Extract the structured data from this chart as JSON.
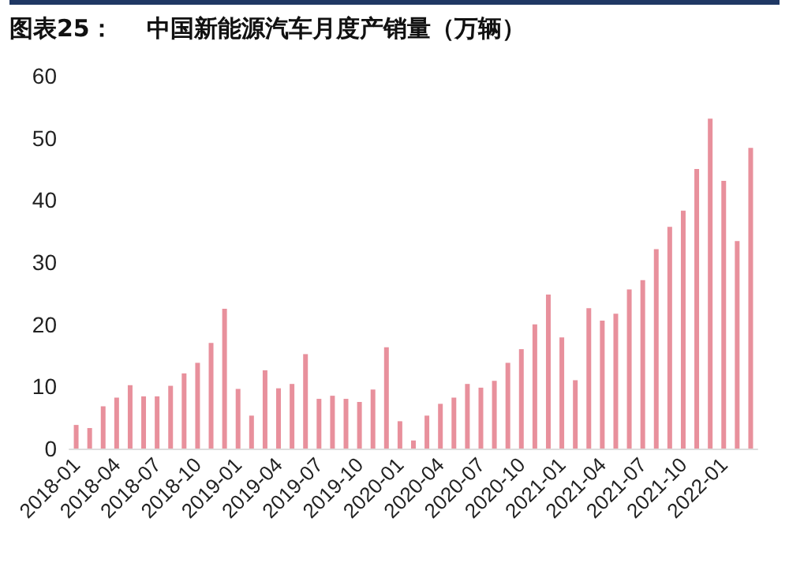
{
  "chart_data": {
    "type": "bar",
    "title": "图表25：    中国新能源汽车月度产销量（万辆）",
    "categories": [
      "2018-01",
      null,
      null,
      "2018-04",
      null,
      null,
      "2018-07",
      null,
      null,
      "2018-10",
      null,
      null,
      "2019-01",
      null,
      null,
      "2019-04",
      null,
      null,
      "2019-07",
      null,
      null,
      "2019-10",
      null,
      null,
      "2020-01",
      null,
      null,
      "2020-04",
      null,
      null,
      "2020-07",
      null,
      null,
      "2020-10",
      null,
      null,
      "2021-01",
      null,
      null,
      "2021-04",
      null,
      null,
      "2021-07",
      null,
      null,
      "2021-10",
      null,
      null,
      "2022-01",
      null,
      null
    ],
    "values": [
      3.8,
      3.3,
      6.8,
      8.2,
      10.2,
      8.4,
      8.4,
      10.1,
      12.1,
      13.8,
      17.0,
      22.5,
      9.6,
      5.3,
      12.6,
      9.7,
      10.4,
      15.2,
      8.0,
      8.5,
      8.0,
      7.5,
      9.5,
      16.3,
      4.4,
      1.3,
      5.3,
      7.2,
      8.2,
      10.4,
      9.8,
      10.9,
      13.8,
      16.0,
      20.0,
      24.8,
      17.9,
      11.0,
      22.6,
      20.6,
      21.7,
      25.6,
      27.1,
      32.1,
      35.7,
      38.3,
      45.0,
      53.1,
      43.1,
      33.4,
      48.4
    ],
    "color": "#e8909c",
    "ylim": [
      0,
      60
    ],
    "yticks": [
      0,
      10,
      20,
      30,
      40,
      50,
      60
    ],
    "grid": false
  }
}
